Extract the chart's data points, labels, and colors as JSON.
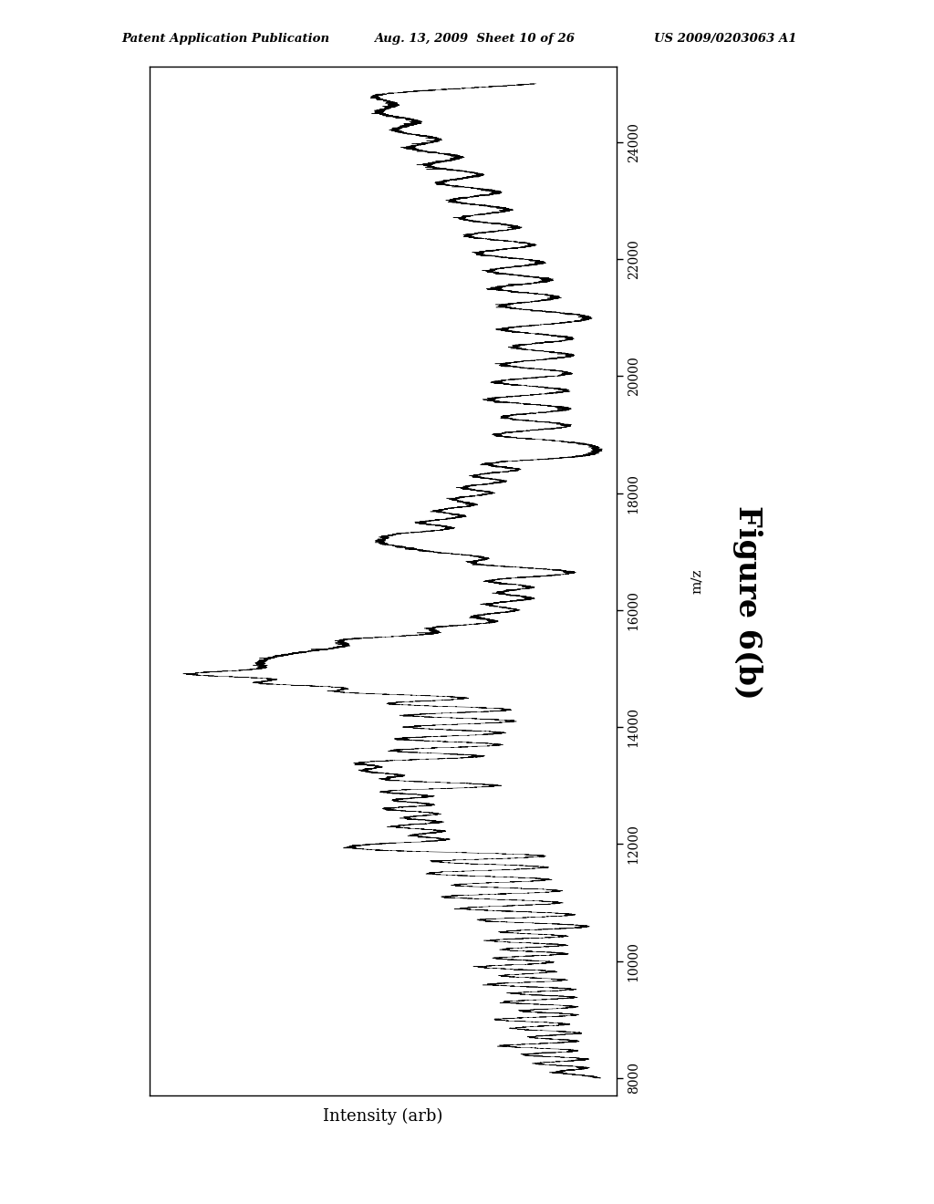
{
  "xlabel": "Intensity (arb)",
  "ylabel": "m/z",
  "mz_min": 8000,
  "mz_max": 25000,
  "mz_ticks": [
    8000,
    10000,
    12000,
    14000,
    16000,
    18000,
    20000,
    22000,
    24000
  ],
  "header_left": "Patent Application Publication",
  "header_center": "Aug. 13, 2009  Sheet 10 of 26",
  "header_right": "US 2009/0203063 A1",
  "figure_label": "Figure 6(b)",
  "bg_color": "#ffffff",
  "line_color": "#000000",
  "seed": 42
}
